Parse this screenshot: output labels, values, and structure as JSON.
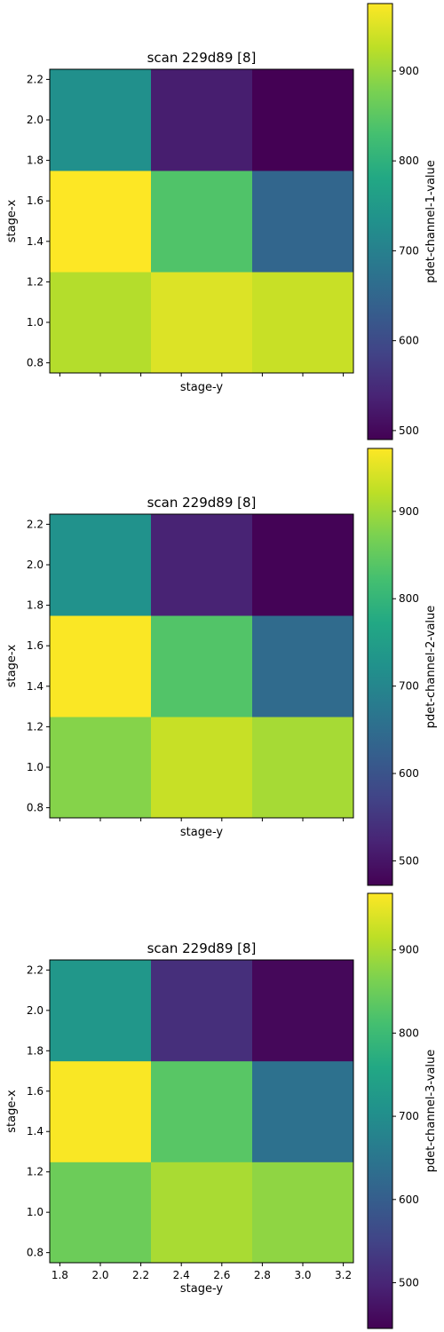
{
  "chart_data": [
    {
      "type": "heatmap",
      "title": "scan 229d89 [8]",
      "xlabel": "stage-y",
      "ylabel": "stage-x",
      "x": [
        2.0,
        2.5,
        3.0
      ],
      "y": [
        1.0,
        1.5,
        2.0
      ],
      "xlim": [
        1.75,
        3.25
      ],
      "ylim": [
        0.75,
        2.25
      ],
      "xticks": [
        "1.8",
        "2.0",
        "2.2",
        "2.4",
        "2.6",
        "2.8",
        "3.0",
        "3.2"
      ],
      "yticks": [
        "0.8",
        "1.0",
        "1.2",
        "1.4",
        "1.6",
        "1.8",
        "2.0",
        "2.2"
      ],
      "show_xticklabels": false,
      "values": [
        [
          920,
          950,
          935
        ],
        [
          975,
          840,
          650
        ],
        [
          730,
          530,
          490
        ]
      ],
      "colorbar": {
        "label": "pdet-channel-1-value",
        "range": [
          490,
          975
        ],
        "ticks": [
          "500",
          "600",
          "700",
          "800",
          "900"
        ],
        "colormap": "viridis"
      }
    },
    {
      "type": "heatmap",
      "title": "scan 229d89 [8]",
      "xlabel": "stage-y",
      "ylabel": "stage-x",
      "x": [
        2.0,
        2.5,
        3.0
      ],
      "y": [
        1.0,
        1.5,
        2.0
      ],
      "xlim": [
        1.75,
        3.25
      ],
      "ylim": [
        0.75,
        2.25
      ],
      "xticks": [
        "1.8",
        "2.0",
        "2.2",
        "2.4",
        "2.6",
        "2.8",
        "3.0",
        "3.2"
      ],
      "yticks": [
        "0.8",
        "1.0",
        "1.2",
        "1.4",
        "1.6",
        "1.8",
        "2.0",
        "2.2"
      ],
      "show_xticklabels": false,
      "values": [
        [
          880,
          930,
          905
        ],
        [
          970,
          835,
          645
        ],
        [
          725,
          520,
          475
        ]
      ],
      "colorbar": {
        "label": "pdet-channel-2-value",
        "range": [
          472,
          972
        ],
        "ticks": [
          "500",
          "600",
          "700",
          "800",
          "900"
        ],
        "colormap": "viridis"
      }
    },
    {
      "type": "heatmap",
      "title": "scan 229d89 [8]",
      "xlabel": "stage-y",
      "ylabel": "stage-x",
      "x": [
        2.0,
        2.5,
        3.0
      ],
      "y": [
        1.0,
        1.5,
        2.0
      ],
      "xlim": [
        1.75,
        3.25
      ],
      "ylim": [
        0.75,
        2.25
      ],
      "xticks": [
        "1.8",
        "2.0",
        "2.2",
        "2.4",
        "2.6",
        "2.8",
        "3.0",
        "3.2"
      ],
      "yticks": [
        "0.8",
        "1.0",
        "1.2",
        "1.4",
        "1.6",
        "1.8",
        "2.0",
        "2.2"
      ],
      "show_xticklabels": true,
      "values": [
        [
          850,
          900,
          880
        ],
        [
          965,
          830,
          640
        ],
        [
          720,
          515,
          455
        ]
      ],
      "colorbar": {
        "label": "pdet-channel-3-value",
        "range": [
          445,
          968
        ],
        "ticks": [
          "500",
          "600",
          "700",
          "800",
          "900"
        ],
        "colormap": "viridis"
      }
    }
  ]
}
